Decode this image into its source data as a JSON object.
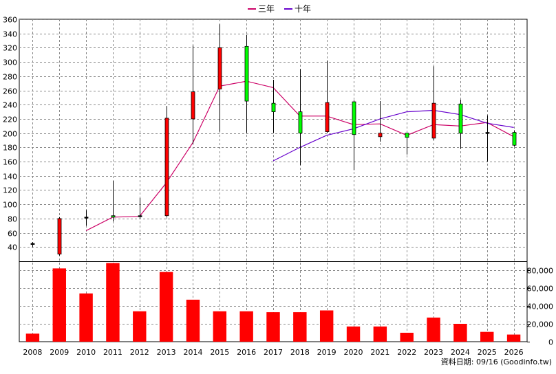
{
  "legend": {
    "item1": "三年",
    "item2": "十年"
  },
  "footer": "資料日期: 09/16  (Goodinfo.tw)",
  "chart_data": {
    "type": "candlestick",
    "categories": [
      "2008",
      "2009",
      "2010",
      "2011",
      "2012",
      "2013",
      "2014",
      "2015",
      "2016",
      "2017",
      "2018",
      "2019",
      "2020",
      "2021",
      "2022",
      "2023",
      "2024",
      "2025",
      "2026"
    ],
    "price_axis": {
      "ylim": [
        20,
        360
      ],
      "ticks": [
        40,
        60,
        80,
        100,
        120,
        140,
        160,
        180,
        200,
        220,
        240,
        260,
        280,
        300,
        320,
        340,
        360
      ]
    },
    "volume_axis": {
      "ylim": [
        0,
        90000
      ],
      "ticks": [
        0,
        20000,
        40000,
        60000,
        80000
      ],
      "tick_labels": [
        "0",
        "20,000",
        "40,000",
        "60,000",
        "80,000"
      ]
    },
    "candles": [
      {
        "open": 45,
        "close": 45,
        "high": 47,
        "low": 40
      },
      {
        "open": 30,
        "close": 80,
        "high": 82,
        "low": 28
      },
      {
        "open": 82,
        "close": 82,
        "high": 92,
        "low": 70
      },
      {
        "open": 84,
        "close": 82,
        "high": 133,
        "low": 76
      },
      {
        "open": 84,
        "close": 84,
        "high": 109,
        "low": 80
      },
      {
        "open": 84,
        "close": 221,
        "high": 238,
        "low": 82
      },
      {
        "open": 220,
        "close": 258,
        "high": 323,
        "low": 185
      },
      {
        "open": 262,
        "close": 320,
        "high": 353,
        "low": 202
      },
      {
        "open": 322,
        "close": 245,
        "high": 338,
        "low": 200
      },
      {
        "open": 242,
        "close": 230,
        "high": 275,
        "low": 200
      },
      {
        "open": 230,
        "close": 200,
        "high": 290,
        "low": 155
      },
      {
        "open": 202,
        "close": 243,
        "high": 302,
        "low": 200
      },
      {
        "open": 244,
        "close": 198,
        "high": 246,
        "low": 148
      },
      {
        "open": 195,
        "close": 200,
        "high": 245,
        "low": 188
      },
      {
        "open": 200,
        "close": 194,
        "high": 200,
        "low": 170
      },
      {
        "open": 193,
        "close": 242,
        "high": 294,
        "low": 190
      },
      {
        "open": 241,
        "close": 200,
        "high": 247,
        "low": 178
      },
      {
        "open": 201,
        "close": 201,
        "high": 225,
        "low": 160
      },
      {
        "open": 201,
        "close": 183,
        "high": 204,
        "low": 181
      }
    ],
    "series": [
      {
        "name": "三年",
        "color": "#cc0066",
        "values": [
          null,
          null,
          63,
          82,
          83,
          130,
          187,
          266,
          273,
          264,
          224,
          224,
          212,
          213,
          197,
          212,
          210,
          215,
          195
        ]
      },
      {
        "name": "十年",
        "color": "#6600cc",
        "values": [
          null,
          null,
          null,
          null,
          null,
          null,
          null,
          null,
          null,
          161,
          180,
          197,
          206,
          220,
          230,
          232,
          226,
          214,
          208
        ]
      }
    ],
    "volume": [
      9000,
      82000,
      54000,
      88000,
      34000,
      78000,
      47000,
      34000,
      34000,
      33000,
      33000,
      35000,
      17000,
      17000,
      10000,
      27000,
      20000,
      11000,
      8000
    ],
    "colors": {
      "up": "#ff0000",
      "down": "#00ff00",
      "volume": "#ff0000",
      "grid": "#888888"
    }
  }
}
